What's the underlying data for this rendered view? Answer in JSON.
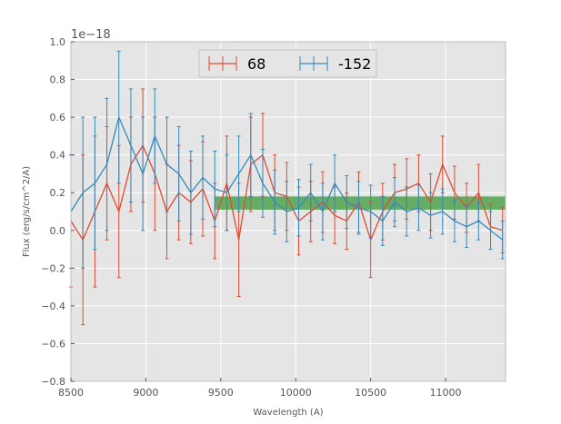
{
  "chart_data": {
    "type": "line",
    "errorbars": true,
    "xlabel": "Wavelength (A)",
    "ylabel": "Flux (erg/s/cm^2/A)",
    "y_offset_label": "1e−18",
    "xlim": [
      8500,
      11400
    ],
    "ylim": [
      -0.8,
      1.0
    ],
    "x_ticks": [
      8500,
      9000,
      9500,
      10000,
      10500,
      11000
    ],
    "x_tick_labels": [
      "8500",
      "9000",
      "9500",
      "10000",
      "10500",
      "11000"
    ],
    "y_ticks": [
      -0.8,
      -0.6,
      -0.4,
      -0.2,
      0.0,
      0.2,
      0.4,
      0.6,
      0.8,
      1.0
    ],
    "y_tick_labels": [
      "−0.8",
      "−0.6",
      "−0.4",
      "−0.2",
      "0.0",
      "0.2",
      "0.4",
      "0.6",
      "0.8",
      "1.0"
    ],
    "grid": true,
    "legend_position": "top-center",
    "background": "#e5e5e5",
    "band": {
      "x": [
        9460,
        11400
      ],
      "y": [
        0.11,
        0.18
      ],
      "color": "#3a9a3a"
    },
    "series": [
      {
        "name": "68",
        "color": "#e24a33",
        "x": [
          8500,
          8580,
          8660,
          8740,
          8820,
          8900,
          8980,
          9060,
          9140,
          9220,
          9300,
          9380,
          9460,
          9540,
          9620,
          9700,
          9780,
          9860,
          9940,
          10020,
          10100,
          10180,
          10260,
          10340,
          10420,
          10500,
          10580,
          10660,
          10740,
          10820,
          10900,
          10980,
          11060,
          11140,
          11220,
          11300,
          11380
        ],
        "y": [
          0.05,
          -0.05,
          0.1,
          0.25,
          0.1,
          0.35,
          0.45,
          0.3,
          0.1,
          0.2,
          0.15,
          0.22,
          0.05,
          0.25,
          -0.05,
          0.35,
          0.4,
          0.2,
          0.18,
          0.05,
          0.1,
          0.15,
          0.08,
          0.05,
          0.15,
          -0.05,
          0.1,
          0.2,
          0.22,
          0.25,
          0.15,
          0.35,
          0.2,
          0.12,
          0.2,
          0.02,
          0.0
        ],
        "err": [
          0.35,
          0.45,
          0.4,
          0.3,
          0.35,
          0.25,
          0.3,
          0.3,
          0.25,
          0.25,
          0.22,
          0.25,
          0.2,
          0.25,
          0.3,
          0.25,
          0.22,
          0.2,
          0.18,
          0.18,
          0.16,
          0.16,
          0.15,
          0.15,
          0.16,
          0.2,
          0.15,
          0.15,
          0.16,
          0.15,
          0.15,
          0.15,
          0.14,
          0.13,
          0.15,
          0.12,
          0.12
        ]
      },
      {
        "name": "-152",
        "color": "#348abd",
        "x": [
          8500,
          8580,
          8660,
          8740,
          8820,
          8900,
          8980,
          9060,
          9140,
          9220,
          9300,
          9380,
          9460,
          9540,
          9620,
          9700,
          9780,
          9860,
          9940,
          10020,
          10100,
          10180,
          10260,
          10340,
          10420,
          10500,
          10580,
          10660,
          10740,
          10820,
          10900,
          10980,
          11060,
          11140,
          11220,
          11300,
          11380
        ],
        "y": [
          0.1,
          0.2,
          0.25,
          0.35,
          0.6,
          0.45,
          0.3,
          0.5,
          0.35,
          0.3,
          0.2,
          0.28,
          0.22,
          0.2,
          0.3,
          0.4,
          0.25,
          0.15,
          0.1,
          0.12,
          0.2,
          0.1,
          0.25,
          0.15,
          0.12,
          0.1,
          0.05,
          0.15,
          0.1,
          0.12,
          0.08,
          0.1,
          0.05,
          0.02,
          0.05,
          0.0,
          -0.05
        ],
        "err": [
          0.3,
          0.4,
          0.35,
          0.35,
          0.35,
          0.3,
          0.3,
          0.25,
          0.25,
          0.25,
          0.22,
          0.22,
          0.2,
          0.2,
          0.2,
          0.22,
          0.18,
          0.17,
          0.16,
          0.15,
          0.15,
          0.15,
          0.15,
          0.14,
          0.14,
          0.14,
          0.13,
          0.13,
          0.13,
          0.12,
          0.12,
          0.12,
          0.11,
          0.11,
          0.1,
          0.1,
          0.1
        ]
      }
    ]
  }
}
